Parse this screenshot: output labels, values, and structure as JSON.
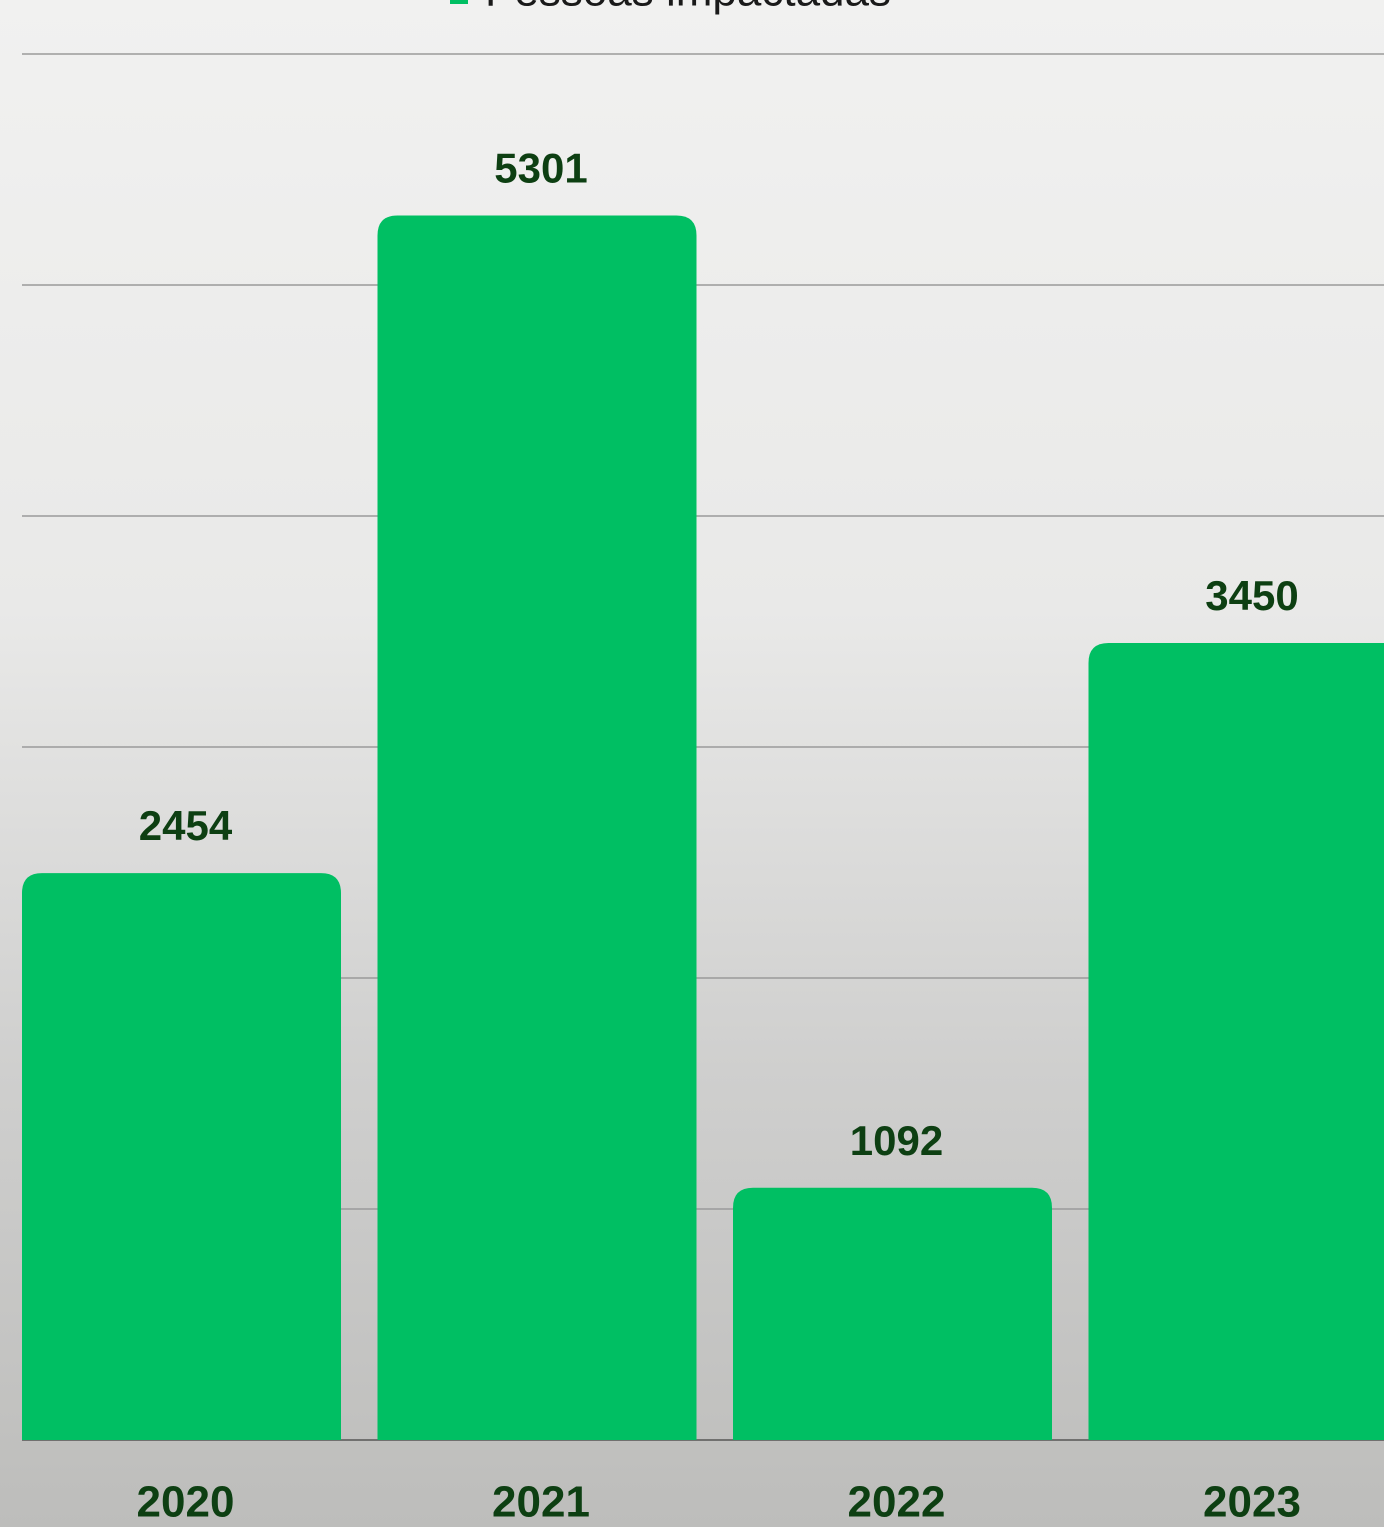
{
  "chart_data": {
    "type": "bar",
    "legend": "Pessoas impactadas",
    "categories": [
      "2020",
      "2021",
      "2022",
      "2023"
    ],
    "values": [
      2454,
      5301,
      1092,
      3450
    ],
    "color": "#00bf63",
    "ylim": [
      0,
      6000
    ],
    "yticks": [
      0,
      1000,
      2000,
      3000,
      4000,
      5000,
      6000
    ],
    "grid": true
  }
}
